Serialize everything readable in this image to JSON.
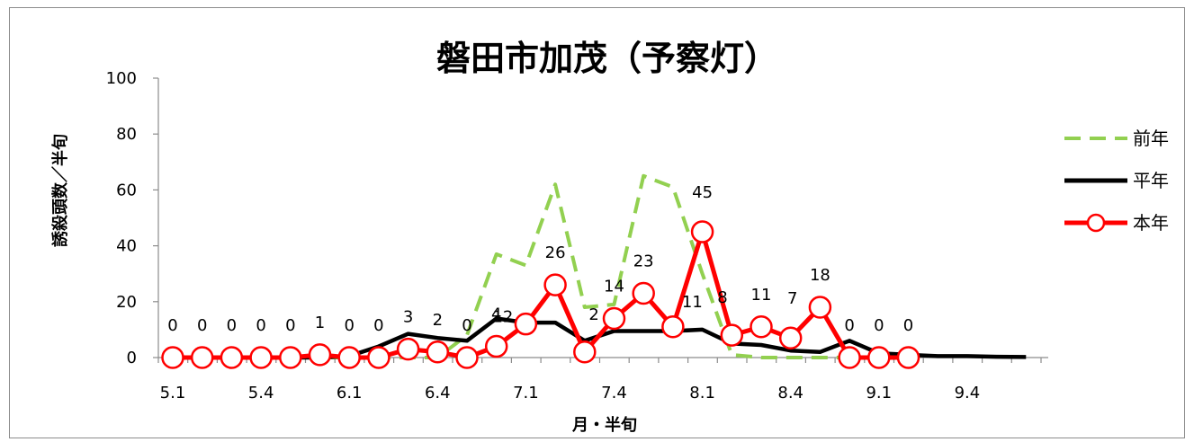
{
  "chart_data": {
    "type": "line",
    "title": "磐田市加茂（予察灯）",
    "xlabel": "月・半旬",
    "ylabel": "誘殺頭数／半旬",
    "ylim": [
      0,
      100
    ],
    "yticks": [
      0,
      20,
      40,
      60,
      80,
      100
    ],
    "x_tick_labels": [
      "5.1",
      "5.4",
      "6.1",
      "6.4",
      "7.1",
      "7.4",
      "8.1",
      "8.4",
      "9.1",
      "9.4"
    ],
    "x_tick_every": 3,
    "grid": false,
    "legend_position": "right",
    "series": [
      {
        "name": "前年",
        "color": "#92d050",
        "style": "dashed",
        "values": [
          0,
          0,
          0,
          0,
          0,
          0,
          0,
          0,
          0,
          0,
          8,
          37,
          33,
          62,
          18,
          19,
          65,
          61,
          30,
          1,
          0,
          0,
          0,
          0,
          0,
          0,
          null,
          null,
          null,
          null
        ]
      },
      {
        "name": "平年",
        "color": "#000000",
        "style": "solid",
        "values": [
          0,
          0,
          0,
          0,
          0,
          0,
          0.5,
          4,
          8.5,
          7,
          6,
          14,
          12.5,
          12.5,
          6,
          9.5,
          9.5,
          9.5,
          10,
          5,
          4.5,
          2.5,
          2,
          6,
          1.5,
          1,
          0.5,
          0.5,
          0.3,
          0.2
        ]
      },
      {
        "name": "本年",
        "color": "#ff0000",
        "style": "solid-marker",
        "values": [
          0,
          0,
          0,
          0,
          0,
          1,
          0,
          0,
          3,
          2,
          0,
          4,
          12,
          26,
          2,
          14,
          23,
          11,
          45,
          8,
          11,
          7,
          18,
          0,
          0,
          0
        ],
        "data_labels": [
          "0",
          "0",
          "0",
          "0",
          "0",
          "1",
          "0",
          "0",
          "3",
          "2",
          "0",
          "4",
          "12",
          "26",
          "2",
          "14",
          "23",
          "11",
          "45",
          "8",
          "11",
          "7",
          "18",
          "0",
          "0",
          "0"
        ]
      }
    ]
  }
}
